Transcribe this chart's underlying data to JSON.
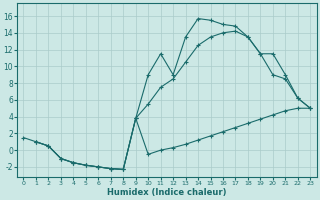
{
  "xlabel": "Humidex (Indice chaleur)",
  "bg_color": "#cce8e5",
  "grid_color": "#aaccca",
  "line_color": "#1a6b6b",
  "xlim": [
    -0.5,
    23.5
  ],
  "ylim": [
    -3.2,
    17.5
  ],
  "xticks": [
    0,
    1,
    2,
    3,
    4,
    5,
    6,
    7,
    8,
    9,
    10,
    11,
    12,
    13,
    14,
    15,
    16,
    17,
    18,
    19,
    20,
    21,
    22,
    23
  ],
  "yticks": [
    -2,
    0,
    2,
    4,
    6,
    8,
    10,
    12,
    14,
    16
  ],
  "line_bot_x": [
    0,
    1,
    2,
    3,
    4,
    5,
    6,
    7,
    8,
    9,
    10,
    11,
    12,
    13,
    14,
    15,
    16,
    17,
    18,
    19,
    20,
    21,
    22,
    23
  ],
  "line_bot_y": [
    1.5,
    1.0,
    0.5,
    -1.0,
    -1.5,
    -1.8,
    -2.0,
    -2.2,
    -2.3,
    3.8,
    -0.5,
    0.0,
    0.3,
    0.7,
    1.2,
    1.7,
    2.2,
    2.7,
    3.2,
    3.7,
    4.2,
    4.7,
    5.0,
    5.0
  ],
  "line_top_x": [
    1,
    2,
    3,
    4,
    5,
    6,
    7,
    8,
    9,
    10,
    11,
    12,
    13,
    14,
    15,
    16,
    17,
    18,
    19,
    20,
    21,
    22,
    23
  ],
  "line_top_y": [
    1.0,
    0.5,
    -1.0,
    -1.5,
    -1.8,
    -2.0,
    -2.2,
    -2.3,
    3.8,
    9.0,
    11.5,
    9.0,
    13.5,
    15.7,
    15.5,
    15.0,
    14.8,
    13.5,
    11.5,
    9.0,
    8.5,
    6.2,
    5.0
  ],
  "line_mid_x": [
    1,
    2,
    3,
    4,
    5,
    6,
    7,
    8,
    9,
    10,
    11,
    12,
    13,
    14,
    15,
    16,
    17,
    18,
    19,
    20,
    21,
    22,
    23
  ],
  "line_mid_y": [
    1.0,
    0.5,
    -1.0,
    -1.5,
    -1.8,
    -2.0,
    -2.2,
    -2.3,
    3.8,
    5.5,
    7.5,
    8.5,
    10.5,
    12.5,
    13.5,
    14.0,
    14.2,
    13.5,
    11.5,
    11.5,
    9.0,
    6.2,
    5.0
  ]
}
